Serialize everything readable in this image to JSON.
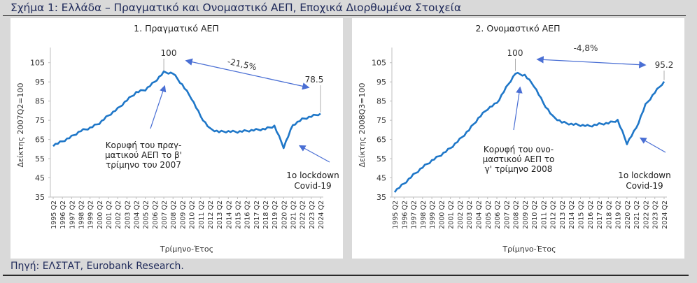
{
  "figure": {
    "title": "Σχήμα 1: Ελλάδα – Πραγματικό και Ονομαστικό ΑΕΠ, Εποχικά Διορθωμένα Στοιχεία",
    "source": "Πηγή: ΕΛΣΤΑΤ, Eurobank Research."
  },
  "colors": {
    "series": "#1f77c8",
    "arrow": "#4a6fd4",
    "text": "#1f2a5a",
    "background": "#d9d9d9",
    "panel": "#ffffff"
  },
  "chart_data": [
    {
      "type": "line",
      "title": "1. Πραγματικό ΑΕΠ",
      "xlabel": "Τρίμηνο-Έτος",
      "ylabel": "Δείκτης 2007Q2=100",
      "ylim": [
        35,
        110
      ],
      "yticks": [
        35,
        45,
        55,
        65,
        75,
        85,
        95,
        105
      ],
      "grid": false,
      "categories": [
        "1995 Q2",
        "1996 Q2",
        "1997 Q2",
        "1998 Q2",
        "1999 Q2",
        "2000 Q2",
        "2001 Q2",
        "2002 Q2",
        "2003 Q2",
        "2004 Q2",
        "2005 Q2",
        "2006 Q2",
        "2007 Q2",
        "2008 Q2",
        "2009 Q2",
        "2010 Q2",
        "2011 Q2",
        "2012 Q2",
        "2013 Q2",
        "2014 Q2",
        "2015 Q2",
        "2016 Q2",
        "2017 Q2",
        "2018 Q2",
        "2019 Q2",
        "2020 Q2",
        "2021 Q2",
        "2022 Q2",
        "2023 Q2",
        "2024 Q2"
      ],
      "series": [
        {
          "name": "Πραγματικό ΑΕΠ",
          "values": [
            62,
            64,
            66.5,
            69.5,
            71,
            73.5,
            77.5,
            81,
            85.5,
            89.5,
            91,
            95,
            100,
            99.5,
            93.5,
            86.5,
            77,
            70.5,
            69,
            69.2,
            69,
            69.5,
            70,
            70.5,
            72,
            61,
            72.5,
            75.5,
            77,
            78.5
          ]
        }
      ],
      "annotations": [
        {
          "label": "100",
          "text": "100"
        },
        {
          "label": "last",
          "text": "78.5"
        },
        {
          "label": "change",
          "text": "-21,5%"
        },
        {
          "label": "peak-note",
          "lines": [
            "Κορυφή του πραγ-",
            "ματικού ΑΕΠ το β'",
            "τρίμηνο του 2007"
          ]
        },
        {
          "label": "covid-note",
          "lines": [
            "1ο lockdown",
            "Covid-19"
          ]
        }
      ]
    },
    {
      "type": "line",
      "title": "2. Ονομαστικό ΑΕΠ",
      "xlabel": "Τρίμηνο-Έτος",
      "ylabel": "Δείκτης 2008Q3=100",
      "ylim": [
        35,
        110
      ],
      "yticks": [
        35,
        45,
        55,
        65,
        75,
        85,
        95,
        105
      ],
      "grid": false,
      "categories": [
        "1995 Q2",
        "1996 Q2",
        "1997 Q2",
        "1998 Q2",
        "1999 Q2",
        "2000 Q2",
        "2001 Q2",
        "2002 Q2",
        "2003 Q2",
        "2004 Q2",
        "2005 Q2",
        "2006 Q2",
        "2007 Q2",
        "2008 Q2",
        "2009 Q2",
        "2010 Q2",
        "2011 Q2",
        "2012 Q2",
        "2013 Q2",
        "2014 Q2",
        "2015 Q2",
        "2016 Q2",
        "2017 Q2",
        "2018 Q2",
        "2019 Q2",
        "2020 Q2",
        "2021 Q2",
        "2022 Q2",
        "2023 Q2",
        "2024 Q2"
      ],
      "series": [
        {
          "name": "Ονομαστικό ΑΕΠ",
          "values": [
            38,
            42,
            46.5,
            50.5,
            54,
            57,
            60.5,
            65,
            70,
            76,
            81,
            84,
            92,
            99.5,
            98.5,
            93,
            84,
            77,
            74,
            73,
            72.5,
            72,
            73,
            73.5,
            75,
            63,
            71,
            83,
            89.5,
            95.2
          ]
        }
      ],
      "annotations": [
        {
          "label": "100",
          "text": "100"
        },
        {
          "label": "last",
          "text": "95.2"
        },
        {
          "label": "change",
          "text": "-4,8%"
        },
        {
          "label": "peak-note",
          "lines": [
            "Κορυφή του ονο-",
            "μαστικού ΑΕΠ το",
            "γ' τρίμηνο 2008"
          ]
        },
        {
          "label": "covid-note",
          "lines": [
            "1ο lockdown",
            "Covid-19"
          ]
        }
      ]
    }
  ]
}
